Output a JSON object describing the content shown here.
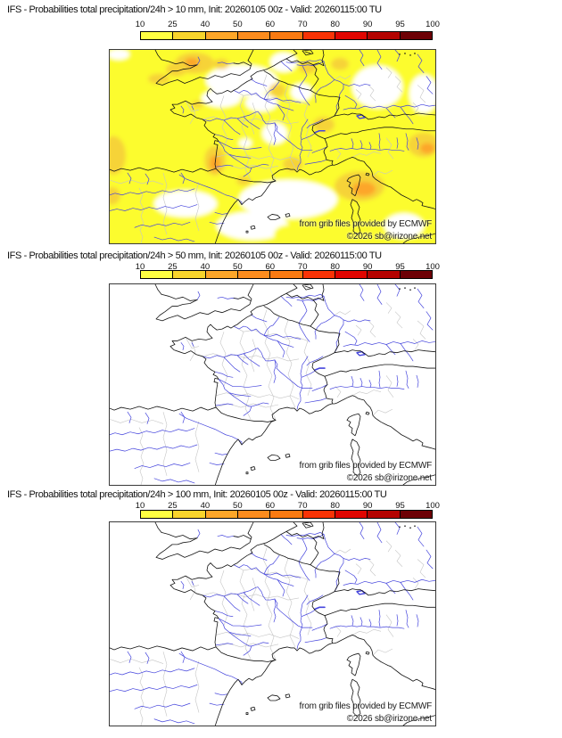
{
  "page": {
    "background": "#ffffff"
  },
  "colorbar": {
    "ticks": [
      "10",
      "25",
      "40",
      "50",
      "60",
      "70",
      "80",
      "90",
      "95",
      "100"
    ],
    "segment_colors": [
      "#ffff42",
      "#f8d42c",
      "#fda629",
      "#fc8c1e",
      "#fa7a12",
      "#f93306",
      "#e00500",
      "#b40300",
      "#6d0005"
    ]
  },
  "panels": [
    {
      "title": "IFS - Probabilities total precipitation/24h > 10 mm, Init: 20260105 00z - Valid: 20260115:00 TU",
      "threshold_mm": "10",
      "shaded": true
    },
    {
      "title": "IFS - Probabilities total precipitation/24h > 50 mm, Init: 20260105 00z - Valid: 20260115:00 TU",
      "threshold_mm": "50",
      "shaded": false
    },
    {
      "title": "IFS - Probabilities total precipitation/24h > 100 mm, Init: 20260105 00z - Valid: 20260115:00 TU",
      "threshold_mm": "100",
      "shaded": false
    }
  ],
  "credits": {
    "line1": "from grib files provided by ECMWF",
    "line2": "©2026 sb@irizone.net"
  },
  "map_colors": {
    "coast": "#151515",
    "admin": "#c6c6c6",
    "river": "#4646dd",
    "shade_low": "#fcfc2e",
    "shade_mid": "#f6d338",
    "shade_high": "#fda629"
  }
}
